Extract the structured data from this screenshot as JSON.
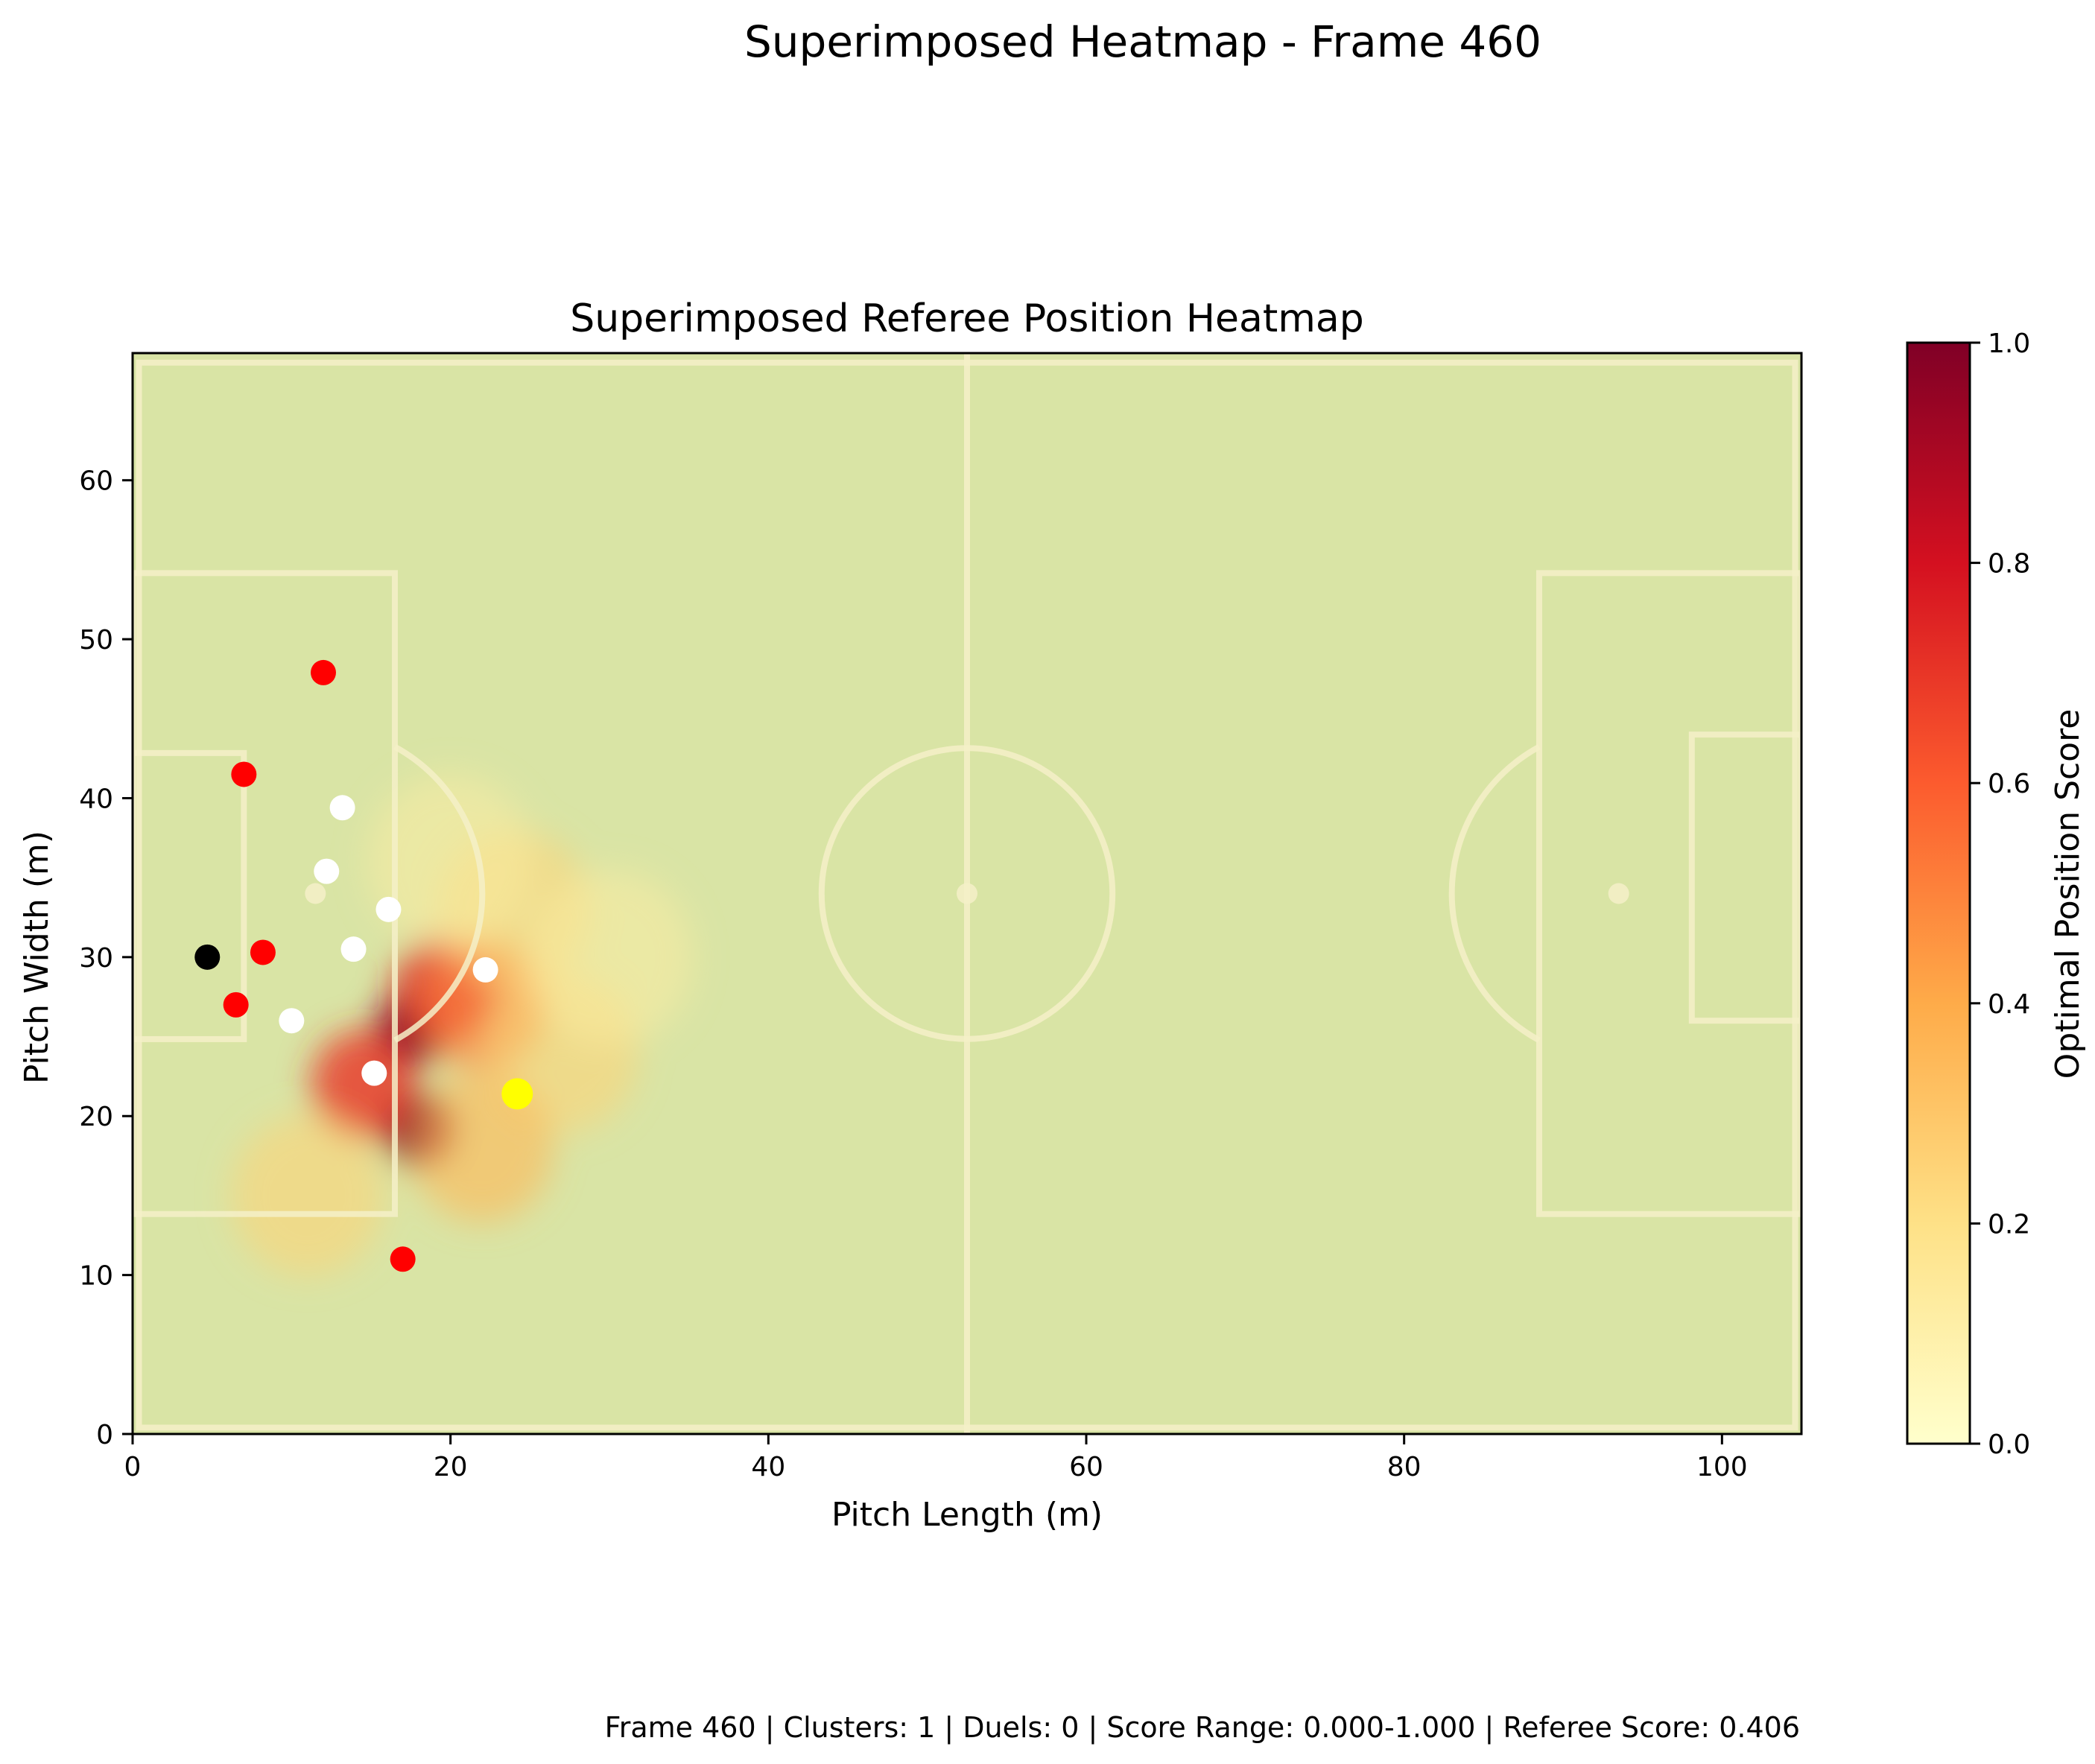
{
  "figure": {
    "suptitle": "Superimposed Heatmap - Frame 460",
    "footer": "Frame 460 | Clusters: 1 | Duels: 0 | Score Range: 0.000-1.000 | Referee Score: 0.406"
  },
  "chart_data": {
    "type": "heatmap",
    "title": "Superimposed Referee Position Heatmap",
    "xlabel": "Pitch Length (m)",
    "ylabel": "Pitch Width (m)",
    "xlim": [
      0,
      105
    ],
    "ylim": [
      0,
      68
    ],
    "xticks": [
      0,
      20,
      40,
      60,
      80,
      100
    ],
    "yticks": [
      0,
      10,
      20,
      30,
      40,
      50,
      60
    ],
    "grid": false,
    "colorbar": {
      "label": "Optimal Position Score",
      "range": [
        0.0,
        1.0
      ],
      "ticks": [
        "0.0",
        "0.2",
        "0.4",
        "0.6",
        "0.8",
        "1.0"
      ],
      "colormap": "YlOrRd"
    },
    "pitch": {
      "length": 105,
      "width": 68,
      "background": "#d9e4a5",
      "line_color": "#f5f0c8"
    },
    "heat_blobs": [
      {
        "x": 17.5,
        "y": 25.5,
        "score": 1.0
      },
      {
        "x": 18.0,
        "y": 19.2,
        "score": 1.0
      },
      {
        "x": 19.5,
        "y": 28.0,
        "score": 0.75
      },
      {
        "x": 14.5,
        "y": 22.0,
        "score": 0.7
      },
      {
        "x": 22.0,
        "y": 27.0,
        "score": 0.5
      },
      {
        "x": 24.0,
        "y": 33.0,
        "score": 0.25
      },
      {
        "x": 27.0,
        "y": 24.0,
        "score": 0.25
      },
      {
        "x": 22.0,
        "y": 18.0,
        "score": 0.35
      },
      {
        "x": 11.0,
        "y": 15.0,
        "score": 0.25
      },
      {
        "x": 30.0,
        "y": 30.0,
        "score": 0.12
      },
      {
        "x": 20.0,
        "y": 36.0,
        "score": 0.12
      }
    ],
    "players": {
      "team_red": [
        {
          "x": 12.0,
          "y": 47.9
        },
        {
          "x": 7.0,
          "y": 41.5
        },
        {
          "x": 8.2,
          "y": 30.3
        },
        {
          "x": 6.5,
          "y": 27.0
        },
        {
          "x": 17.0,
          "y": 11.0
        }
      ],
      "team_white": [
        {
          "x": 13.2,
          "y": 39.4
        },
        {
          "x": 12.2,
          "y": 35.4
        },
        {
          "x": 16.1,
          "y": 33.0
        },
        {
          "x": 13.9,
          "y": 30.5
        },
        {
          "x": 22.2,
          "y": 29.2
        },
        {
          "x": 10.0,
          "y": 26.0
        },
        {
          "x": 15.2,
          "y": 22.7
        }
      ],
      "goalkeeper": [
        {
          "x": 4.7,
          "y": 30.0
        }
      ],
      "referee": [
        {
          "x": 24.2,
          "y": 21.4
        }
      ]
    },
    "colors": {
      "team_red": "#ff0000",
      "team_white": "#ffffff",
      "goalkeeper": "#000000",
      "referee": "#ffff00"
    }
  }
}
